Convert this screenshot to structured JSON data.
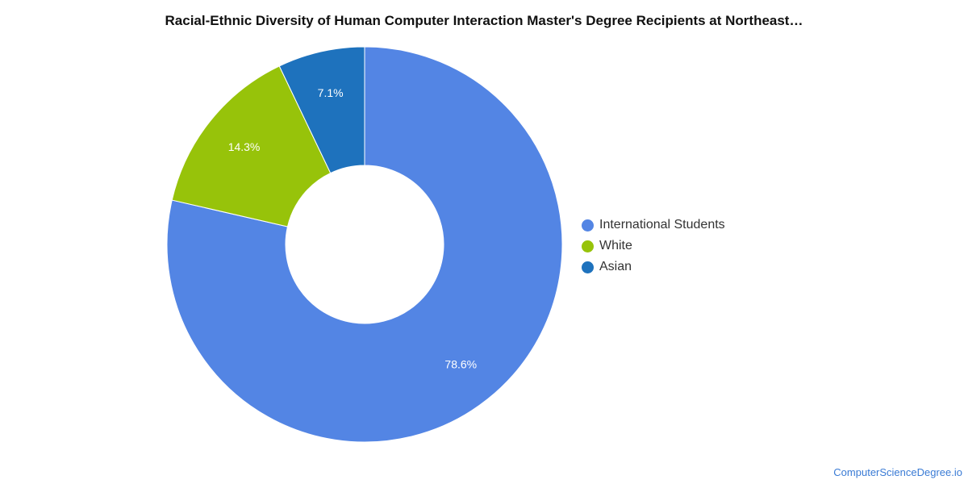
{
  "chart_data": {
    "type": "pie",
    "variant": "donut",
    "title": "Racial-Ethnic Diversity of Human Computer Interaction Master's Degree Recipients at Northeast…",
    "slices": [
      {
        "label": "International Students",
        "value": 78.6,
        "display": "78.6%",
        "color": "#5385e4"
      },
      {
        "label": "White",
        "value": 14.3,
        "display": "14.3%",
        "color": "#97c30a"
      },
      {
        "label": "Asian",
        "value": 7.1,
        "display": "7.1%",
        "color": "#1e72bd"
      }
    ],
    "legend_position": "right"
  },
  "watermark": "ComputerScienceDegree.io"
}
